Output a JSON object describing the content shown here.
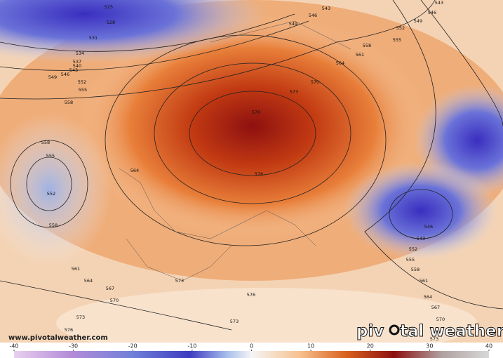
{
  "watermark": "www.pivotalweather.com",
  "brand": {
    "left": "piv",
    "right": "tal weather"
  },
  "contour_labels": [
    525,
    528,
    531,
    534,
    537,
    540,
    543,
    546,
    549,
    552,
    555,
    558,
    558,
    555,
    552,
    558,
    561,
    564,
    567,
    570,
    573,
    576,
    573,
    576,
    573,
    576,
    576,
    573,
    570,
    564,
    561,
    558,
    555,
    552,
    549,
    546,
    543,
    543,
    546,
    549,
    564,
    546,
    543,
    552,
    555,
    558,
    561,
    564,
    567,
    570,
    573
  ],
  "colorbar": {
    "lim": [
      -40,
      40
    ],
    "ticks": [
      -40,
      -30,
      -20,
      -10,
      0,
      10,
      20,
      30,
      40
    ]
  }
}
